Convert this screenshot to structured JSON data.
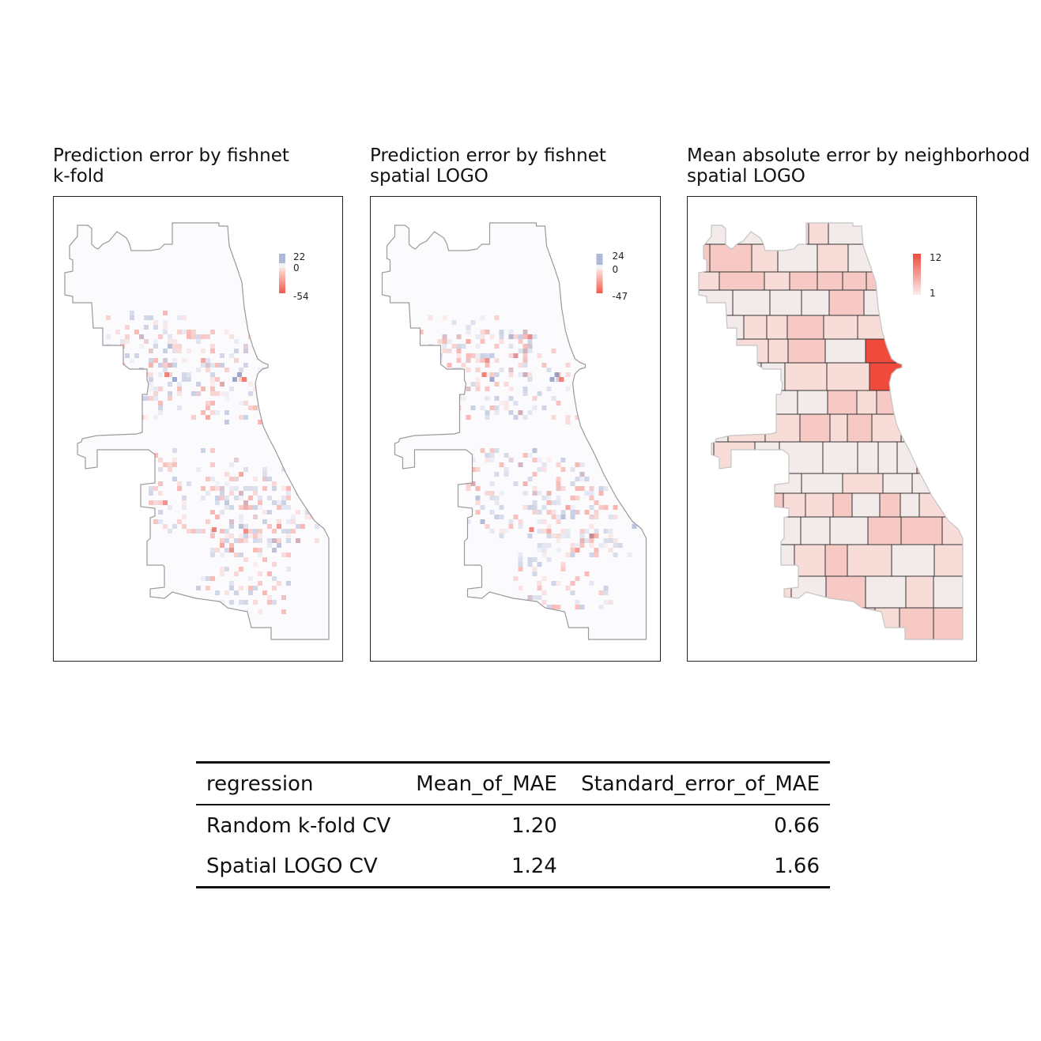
{
  "maps": [
    {
      "title_line1": "Prediction error by fishnet",
      "title_line2": "k-fold",
      "legend": {
        "max": "22",
        "mid": "0",
        "min": "-54"
      },
      "type": "fishnet"
    },
    {
      "title_line1": "Prediction error by fishnet",
      "title_line2": "spatial LOGO",
      "legend": {
        "max": "24",
        "mid": "0",
        "min": "-47"
      },
      "type": "fishnet"
    },
    {
      "title_line1": "Mean absolute error by neighborhood",
      "title_line2": "spatial LOGO",
      "legend": {
        "max": "12",
        "min": "1"
      },
      "type": "neighborhood"
    }
  ],
  "colors": {
    "positive": "#b7c3dc",
    "negative": "#f25b4c",
    "neutral": "#f4f4f8",
    "neighborhood_high": "#ef4a3c",
    "neighborhood_low": "#f2f2f2",
    "boundary": "#9a9a9a"
  },
  "table": {
    "headers": [
      "regression",
      "Mean_of_MAE",
      "Standard_error_of_MAE"
    ],
    "rows": [
      {
        "regression": "Random k-fold CV",
        "mean": "1.20",
        "se": "0.66"
      },
      {
        "regression": "Spatial LOGO CV",
        "mean": "1.24",
        "se": "1.66"
      }
    ]
  }
}
